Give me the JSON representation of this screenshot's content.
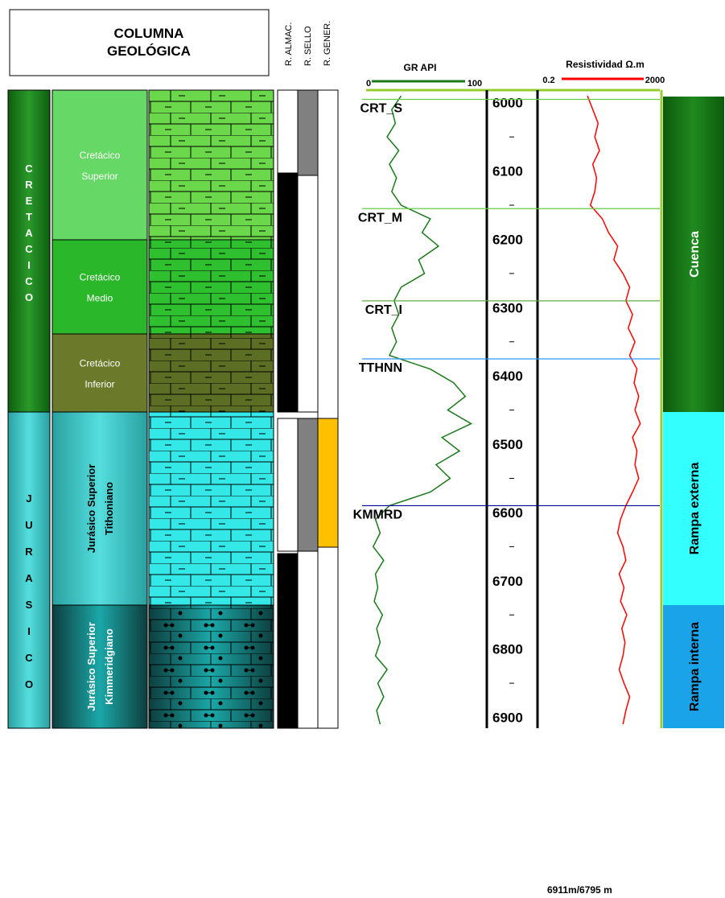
{
  "header": {
    "title": [
      "COLUMNA",
      "GEOLÓGICA"
    ],
    "columns": [
      "R. ALMAC.",
      "R. SELLO",
      "R. GENER."
    ]
  },
  "systems": [
    "CRETACICO",
    "JURASICO"
  ],
  "series": [
    [
      "Cretácico",
      "Superior"
    ],
    [
      "Cretácico",
      "Medio"
    ],
    [
      "Cretácico",
      "Inferior"
    ],
    [
      "Jurásico Superior",
      "Tithoniano"
    ],
    [
      "Jurásico Superior",
      "Kimmeridgiano"
    ]
  ],
  "logs": {
    "ylim": [
      5985,
      6910
    ],
    "depth_ticks": [
      6000,
      6100,
      6200,
      6300,
      6400,
      6500,
      6600,
      6700,
      6800,
      6900
    ],
    "minor_ticks": [
      6050,
      6150,
      6250,
      6350,
      6450,
      6550,
      6650,
      6750,
      6850
    ],
    "depths": [
      5990,
      6010,
      6030,
      6050,
      6070,
      6090,
      6110,
      6130,
      6150,
      6170,
      6190,
      6210,
      6230,
      6250,
      6270,
      6290,
      6310,
      6330,
      6350,
      6370,
      6390,
      6410,
      6430,
      6450,
      6470,
      6490,
      6510,
      6530,
      6550,
      6570,
      6590,
      6610,
      6630,
      6650,
      6670,
      6690,
      6710,
      6730,
      6750,
      6770,
      6790,
      6810,
      6830,
      6850,
      6870,
      6890,
      6910
    ],
    "gr": {
      "name": "GR   API",
      "color": "#1a7a1a",
      "xlim": [
        0,
        100
      ],
      "ticks": [
        0,
        100
      ],
      "values": [
        30,
        22,
        25,
        18,
        28,
        20,
        26,
        22,
        30,
        55,
        48,
        62,
        45,
        50,
        30,
        24,
        28,
        22,
        26,
        20,
        55,
        75,
        85,
        70,
        90,
        65,
        80,
        60,
        72,
        55,
        20,
        8,
        12,
        6,
        15,
        8,
        10,
        7,
        14,
        9,
        12,
        8,
        18,
        10,
        15,
        9,
        12
      ]
    },
    "res": {
      "name": "Resistividad  Ω.m",
      "color": "#ff0000",
      "xlim": [
        0.2,
        2000
      ],
      "ticks": [
        0.2,
        2000
      ],
      "log": true,
      "values": [
        8,
        12,
        18,
        14,
        20,
        12,
        16,
        14,
        10,
        25,
        40,
        80,
        60,
        120,
        200,
        150,
        250,
        180,
        300,
        200,
        350,
        280,
        400,
        300,
        450,
        250,
        350,
        300,
        400,
        250,
        150,
        100,
        80,
        120,
        150,
        90,
        130,
        100,
        160,
        110,
        140,
        120,
        90,
        130,
        200,
        150,
        120
      ]
    },
    "tops": [
      {
        "label": "CRT_S",
        "depth": 5995,
        "color": "#66cc44"
      },
      {
        "label": "CRT_M",
        "depth": 6155,
        "color": "#66cc44"
      },
      {
        "label": "CRT_I",
        "depth": 6290,
        "color": "#66aa44"
      },
      {
        "label": "TTHNN",
        "depth": 6375,
        "color": "#3399ff"
      },
      {
        "label": "KMMRD",
        "depth": 6590,
        "color": "#000099"
      }
    ]
  },
  "facies": [
    "Cuenca",
    "Rampa externa",
    "Rampa interna"
  ],
  "footer": "6911m/6795 m"
}
